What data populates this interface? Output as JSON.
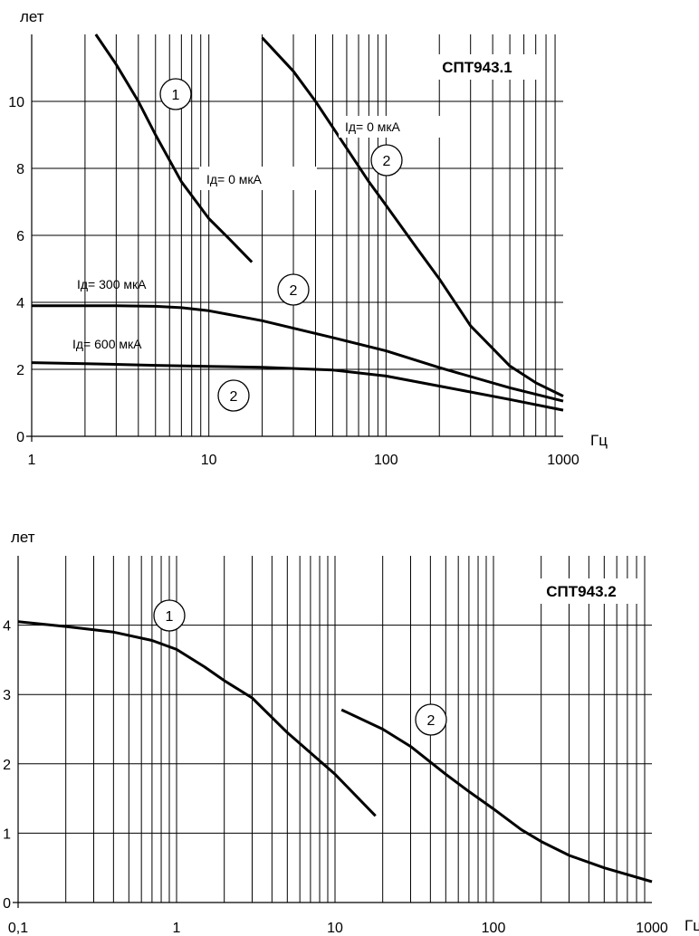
{
  "chart_data": [
    {
      "type": "line",
      "title": "СПТ943.1",
      "ylabel": "лет",
      "xlabel": "Гц",
      "x_scale": "log",
      "xlim": [
        1,
        1000
      ],
      "ylim": [
        0,
        12
      ],
      "x_ticks": [
        1,
        10,
        100,
        1000
      ],
      "x_tick_labels": [
        "1",
        "10",
        "100",
        "1000"
      ],
      "y_ticks": [
        0,
        2,
        4,
        6,
        8,
        10
      ],
      "y_tick_labels": [
        "0",
        "2",
        "4",
        "6",
        "8",
        "10"
      ],
      "grid": true,
      "series": [
        {
          "marker": "1",
          "label": "Iд= 0 мкА",
          "x": [
            2.3,
            3,
            4,
            5,
            7,
            10,
            13,
            17.5
          ],
          "y": [
            12.0,
            11.1,
            10.0,
            9.0,
            7.6,
            6.5,
            5.9,
            5.2
          ]
        },
        {
          "marker": "2",
          "label": "Iд= 0 мкА",
          "x": [
            20,
            30,
            40,
            60,
            80,
            100,
            150,
            200,
            300,
            500,
            700,
            1000
          ],
          "y": [
            11.9,
            10.9,
            10.0,
            8.6,
            7.6,
            6.9,
            5.6,
            4.7,
            3.3,
            2.1,
            1.6,
            1.2
          ]
        },
        {
          "marker": "2",
          "label": "Iд= 300 мкА",
          "x": [
            1,
            2,
            3,
            5,
            7,
            10,
            20,
            50,
            100,
            200,
            500,
            1000
          ],
          "y": [
            3.9,
            3.9,
            3.9,
            3.88,
            3.84,
            3.75,
            3.45,
            2.95,
            2.55,
            2.05,
            1.45,
            1.05
          ]
        },
        {
          "marker": "2",
          "label": "Iд= 600 мкА",
          "x": [
            1,
            2,
            5,
            10,
            20,
            50,
            100,
            200,
            500,
            1000
          ],
          "y": [
            2.2,
            2.17,
            2.12,
            2.09,
            2.06,
            1.98,
            1.8,
            1.5,
            1.1,
            0.78
          ]
        }
      ]
    },
    {
      "type": "line",
      "title": "СПТ943.2",
      "ylabel": "лет",
      "xlabel": "Гц",
      "x_scale": "log",
      "xlim": [
        0.1,
        1000
      ],
      "ylim": [
        0,
        5
      ],
      "x_ticks": [
        0.1,
        1,
        10,
        100,
        1000
      ],
      "x_tick_labels": [
        "0,1",
        "1",
        "10",
        "100",
        "1000"
      ],
      "y_ticks": [
        0,
        1,
        2,
        3,
        4
      ],
      "y_tick_labels": [
        "0",
        "1",
        "2",
        "3",
        "4"
      ],
      "grid": true,
      "series": [
        {
          "marker": "1",
          "x": [
            0.1,
            0.2,
            0.4,
            0.7,
            1,
            1.5,
            2,
            3,
            5,
            10,
            18
          ],
          "y": [
            4.05,
            3.98,
            3.9,
            3.78,
            3.65,
            3.4,
            3.2,
            2.95,
            2.45,
            1.85,
            1.25
          ]
        },
        {
          "marker": "2",
          "x": [
            11,
            20,
            30,
            50,
            70,
            100,
            150,
            200,
            300,
            500,
            1000
          ],
          "y": [
            2.78,
            2.5,
            2.25,
            1.85,
            1.6,
            1.35,
            1.05,
            0.88,
            0.68,
            0.5,
            0.3
          ]
        }
      ]
    }
  ]
}
